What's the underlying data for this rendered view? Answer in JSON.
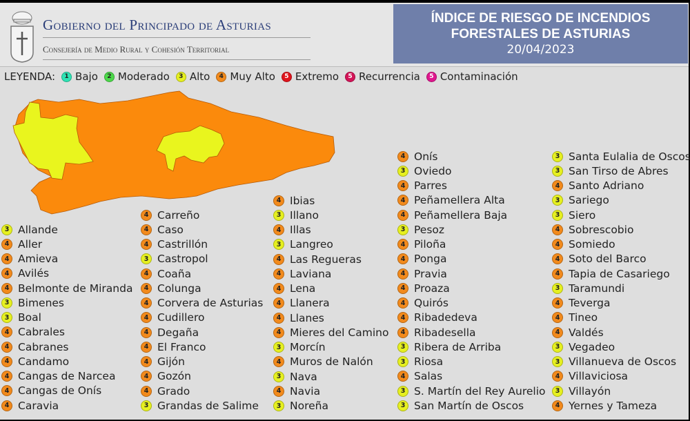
{
  "header": {
    "gov_title": "Gobierno del Principado de Asturias",
    "gov_subtitle": "Consejería de Medio Rural y Cohesión Territorial",
    "title_line1": "ÍNDICE DE RIESGO DE INCENDIOS",
    "title_line2": "FORESTALES DE ASTURIAS",
    "date": "20/04/2023"
  },
  "legend": {
    "label": "LEYENDA:",
    "items": [
      {
        "level": "1",
        "label": "Bajo",
        "color": "#2ee3b4"
      },
      {
        "level": "2",
        "label": "Moderado",
        "color": "#4cd94a"
      },
      {
        "level": "3",
        "label": "Alto",
        "color": "#e6f020"
      },
      {
        "level": "4",
        "label": "Muy Alto",
        "color": "#f28a1c"
      },
      {
        "level": "5",
        "label": "Extremo",
        "color": "#e0141c"
      },
      {
        "level": "5",
        "label": "Recurrencia",
        "color": "#d41458"
      },
      {
        "level": "5",
        "label": "Contaminación",
        "color": "#e0168e"
      }
    ]
  },
  "map": {
    "colors": {
      "alto": "#e9f51e",
      "muy_alto": "#fb8a0c",
      "border": "#b45a08"
    }
  },
  "columns": [
    [
      [
        "Allande",
        "3"
      ],
      [
        "Aller",
        "4"
      ],
      [
        "Amieva",
        "4"
      ],
      [
        "Avilés",
        "4"
      ],
      [
        "Belmonte de Miranda",
        "4"
      ],
      [
        "Bimenes",
        "3"
      ],
      [
        "Boal",
        "3"
      ],
      [
        "Cabrales",
        "4"
      ],
      [
        "Cabranes",
        "4"
      ],
      [
        "Candamo",
        "4"
      ],
      [
        "Cangas de Narcea",
        "4"
      ],
      [
        "Cangas de Onís",
        "4"
      ],
      [
        "Caravia",
        "4"
      ]
    ],
    [
      [
        "Carreño",
        "4"
      ],
      [
        "Caso",
        "4"
      ],
      [
        "Castrillón",
        "4"
      ],
      [
        "Castropol",
        "3"
      ],
      [
        "Coaña",
        "4"
      ],
      [
        "Colunga",
        "4"
      ],
      [
        "Corvera de Asturias",
        "4"
      ],
      [
        "Cudillero",
        "4"
      ],
      [
        "Degaña",
        "4"
      ],
      [
        "El Franco",
        "4"
      ],
      [
        "Gijón",
        "4"
      ],
      [
        "Gozón",
        "4"
      ],
      [
        "Grado",
        "4"
      ],
      [
        "Grandas de Salime",
        "3"
      ]
    ],
    [
      [
        "Ibias",
        "4"
      ],
      [
        "Illano",
        "3"
      ],
      [
        "Illas",
        "4"
      ],
      [
        "Langreo",
        "3"
      ],
      [
        "Las Regueras",
        "4"
      ],
      [
        "Laviana",
        "4"
      ],
      [
        "Lena",
        "4"
      ],
      [
        "Llanera",
        "4"
      ],
      [
        "Llanes",
        "4"
      ],
      [
        "Mieres del Camino",
        "4"
      ],
      [
        "Morcín",
        "3"
      ],
      [
        "Muros de Nalón",
        "4"
      ],
      [
        "Nava",
        "3"
      ],
      [
        "Navia",
        "4"
      ],
      [
        "Noreña",
        "3"
      ]
    ],
    [
      [
        "Onís",
        "4"
      ],
      [
        "Oviedo",
        "3"
      ],
      [
        "Parres",
        "4"
      ],
      [
        "Peñamellera Alta",
        "4"
      ],
      [
        "Peñamellera Baja",
        "4"
      ],
      [
        "Pesoz",
        "3"
      ],
      [
        "Piloña",
        "4"
      ],
      [
        "Ponga",
        "4"
      ],
      [
        "Pravia",
        "4"
      ],
      [
        "Proaza",
        "4"
      ],
      [
        "Quirós",
        "4"
      ],
      [
        "Ribadedeva",
        "4"
      ],
      [
        "Ribadesella",
        "4"
      ],
      [
        "Ribera de Arriba",
        "3"
      ],
      [
        "Riosa",
        "3"
      ],
      [
        "Salas",
        "4"
      ],
      [
        "S. Martín del Rey Aurelio",
        "3"
      ],
      [
        "San Martín de Oscos",
        "3"
      ]
    ],
    [
      [
        "Santa Eulalia de Oscos",
        "3"
      ],
      [
        "San Tirso de Abres",
        "3"
      ],
      [
        "Santo Adriano",
        "4"
      ],
      [
        "Sariego",
        "3"
      ],
      [
        "Siero",
        "3"
      ],
      [
        "Sobrescobio",
        "4"
      ],
      [
        "Somiedo",
        "4"
      ],
      [
        "Soto del Barco",
        "4"
      ],
      [
        "Tapia de Casariego",
        "4"
      ],
      [
        "Taramundi",
        "3"
      ],
      [
        "Teverga",
        "4"
      ],
      [
        "Tineo",
        "4"
      ],
      [
        "Valdés",
        "4"
      ],
      [
        "Vegadeo",
        "3"
      ],
      [
        "Villanueva de Oscos",
        "3"
      ],
      [
        "Villaviciosa",
        "4"
      ],
      [
        "Villayón",
        "3"
      ],
      [
        "Yernes y Tameza",
        "4"
      ]
    ]
  ]
}
